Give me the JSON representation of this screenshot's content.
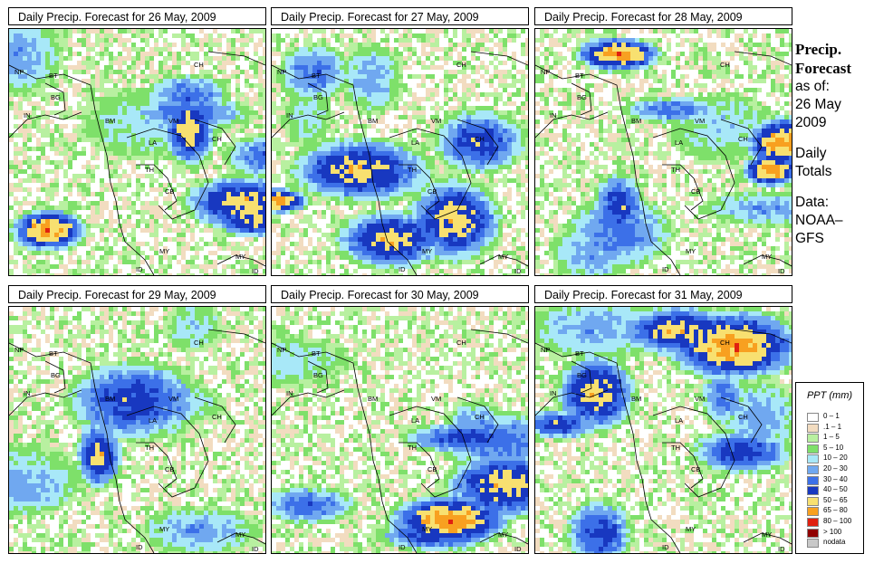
{
  "panels": [
    {
      "title": "Daily Precip. Forecast for  26 May, 2009"
    },
    {
      "title": "Daily Precip. Forecast for  27 May, 2009"
    },
    {
      "title": "Daily Precip. Forecast for  28 May, 2009"
    },
    {
      "title": "Daily Precip. Forecast for  29 May, 2009"
    },
    {
      "title": "Daily Precip. Forecast for  30 May, 2009"
    },
    {
      "title": "Daily Precip. Forecast for  31 May, 2009"
    }
  ],
  "country_labels": [
    "NP",
    "BT",
    "BG",
    "IN",
    "CH",
    "BM",
    "VM",
    "LA",
    "TH",
    "CB",
    "CH",
    "MY",
    "MY",
    "ID",
    "ID"
  ],
  "sidebar": {
    "title_line1": "Precip.",
    "title_line2": "Forecast",
    "asof_line1": "as of:",
    "asof_line2": "26 May",
    "asof_line3": "2009",
    "daily_line1": "Daily",
    "daily_line2": "Totals",
    "data_line1": "Data:",
    "data_line2": "NOAA–",
    "data_line3": "GFS"
  },
  "legend": {
    "title": "PPT (mm)",
    "items": [
      {
        "label": "0 – 1",
        "color": "#ffffff"
      },
      {
        "label": ".1 – 1",
        "color": "#f2dcc0"
      },
      {
        "label": "1 – 5",
        "color": "#b8f0a0"
      },
      {
        "label": "5 – 10",
        "color": "#7ee06a"
      },
      {
        "label": "10 – 20",
        "color": "#a8e8f8"
      },
      {
        "label": "20 – 30",
        "color": "#70a8f0"
      },
      {
        "label": "30 – 40",
        "color": "#3c70e8"
      },
      {
        "label": "40 – 50",
        "color": "#1838c0"
      },
      {
        "label": "50 – 65",
        "color": "#f8e070"
      },
      {
        "label": "65 – 80",
        "color": "#f8a020"
      },
      {
        "label": "80 – 100",
        "color": "#e02010"
      },
      {
        "label": "> 100",
        "color": "#900000"
      },
      {
        "label": "nodata",
        "color": "#c8c8c8"
      }
    ]
  }
}
